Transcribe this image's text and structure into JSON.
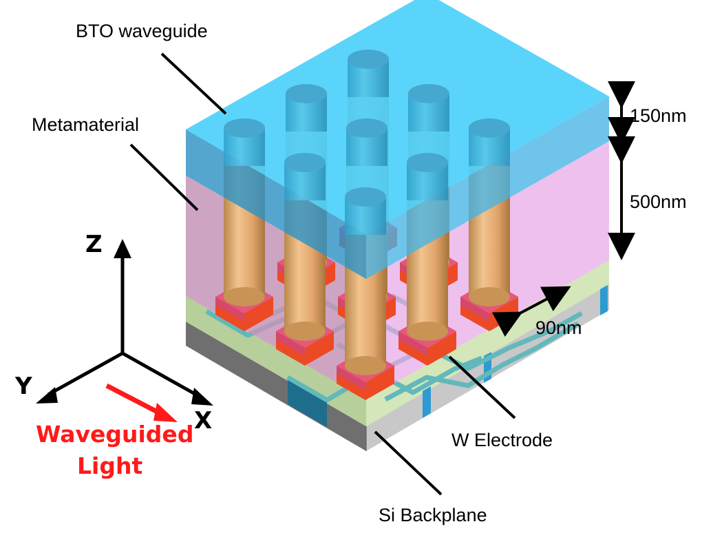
{
  "labels": {
    "bto_waveguide": "BTO waveguide",
    "metamaterial": "Metamaterial",
    "w_electrode": "W Electrode",
    "si_backplane": "Si Backplane"
  },
  "dimensions": {
    "bto_thickness": "150nm",
    "metamaterial_thickness": "500nm",
    "pitch": "90nm"
  },
  "axes": {
    "z": "Z",
    "y": "Y",
    "x": "X"
  },
  "light": {
    "line1": "Waveguided",
    "line2": "Light"
  },
  "colors": {
    "bto": "#3ec7f7",
    "metamaterial": "#e6a4e4",
    "pillar": "#e4ad72",
    "pad": "#e5587a",
    "pad_base": "#ec4a25",
    "substrate_top": "#d6e6b8",
    "electrode_line": "#5ab0b7",
    "backplane": "#bdbdbd",
    "light_arrow": "#ff1a1a"
  }
}
